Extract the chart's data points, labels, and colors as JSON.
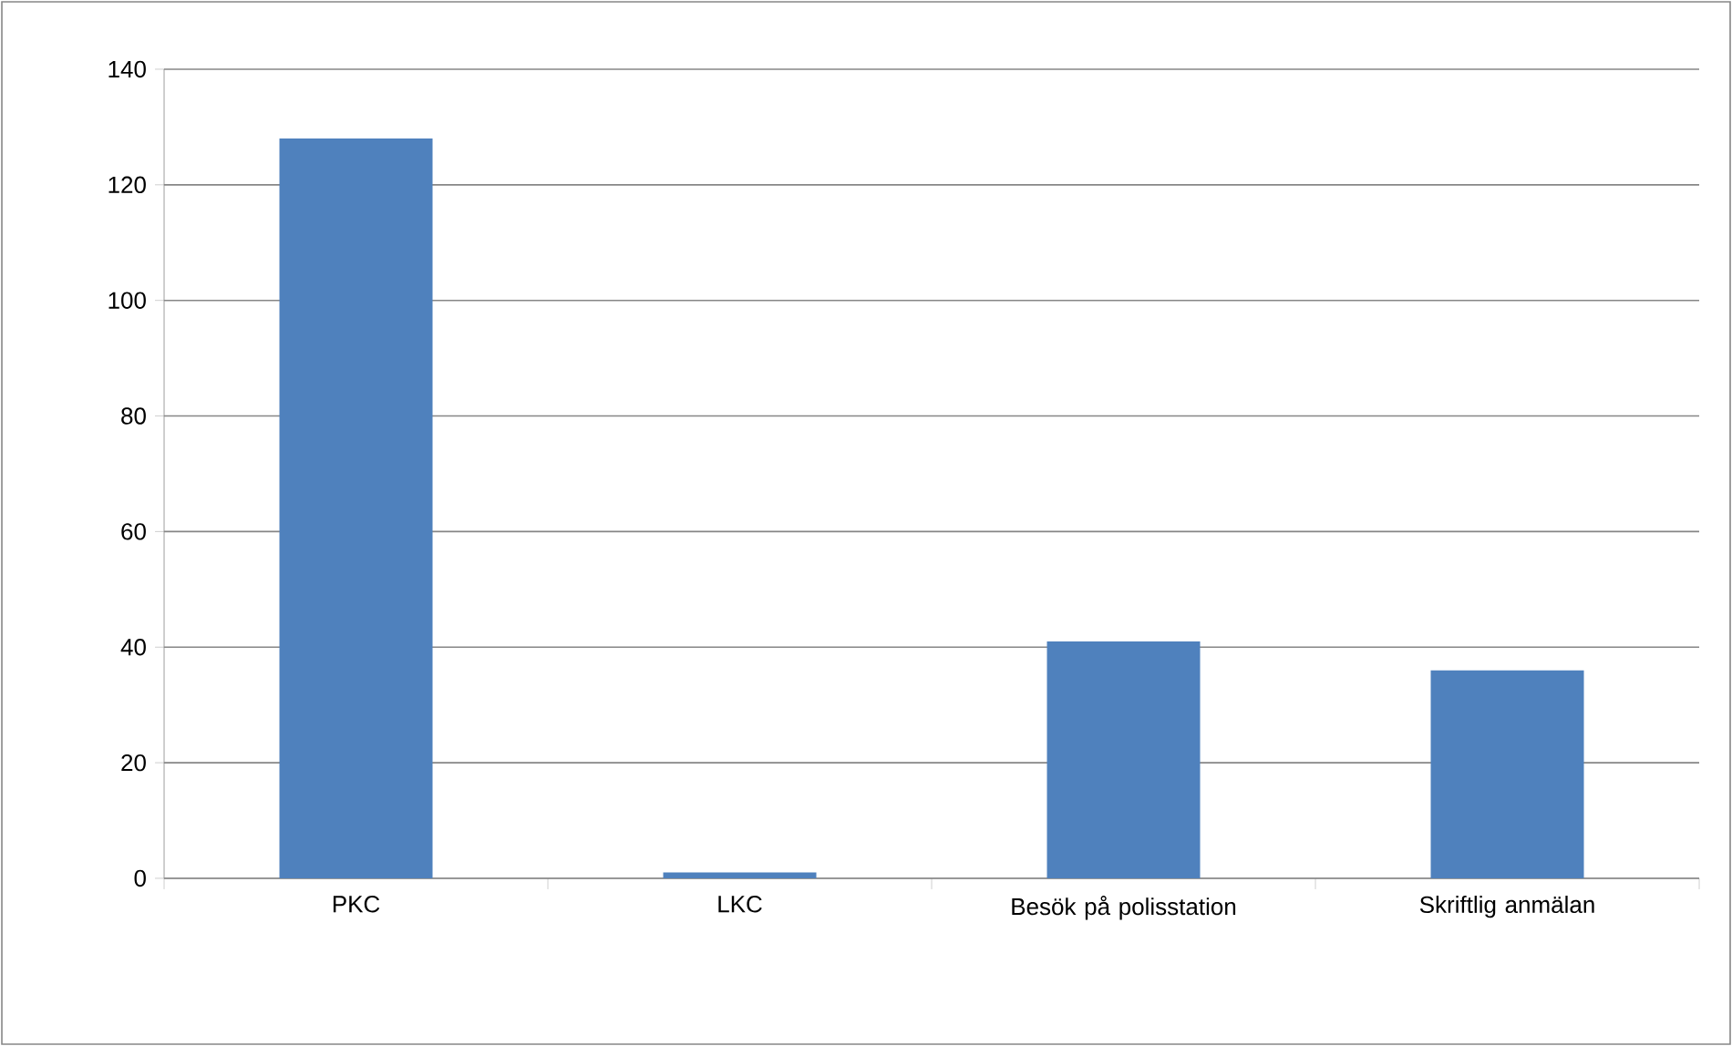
{
  "chart_data": {
    "type": "bar",
    "categories": [
      "PKC",
      "LKC",
      "Besök på polisstation",
      "Skriftlig anmälan"
    ],
    "values": [
      128,
      1,
      41,
      36
    ],
    "color": "#4f81bd",
    "ylim": [
      0,
      140
    ],
    "yticks": [
      0,
      20,
      40,
      60,
      80,
      100,
      120,
      140
    ],
    "grid": "y"
  }
}
